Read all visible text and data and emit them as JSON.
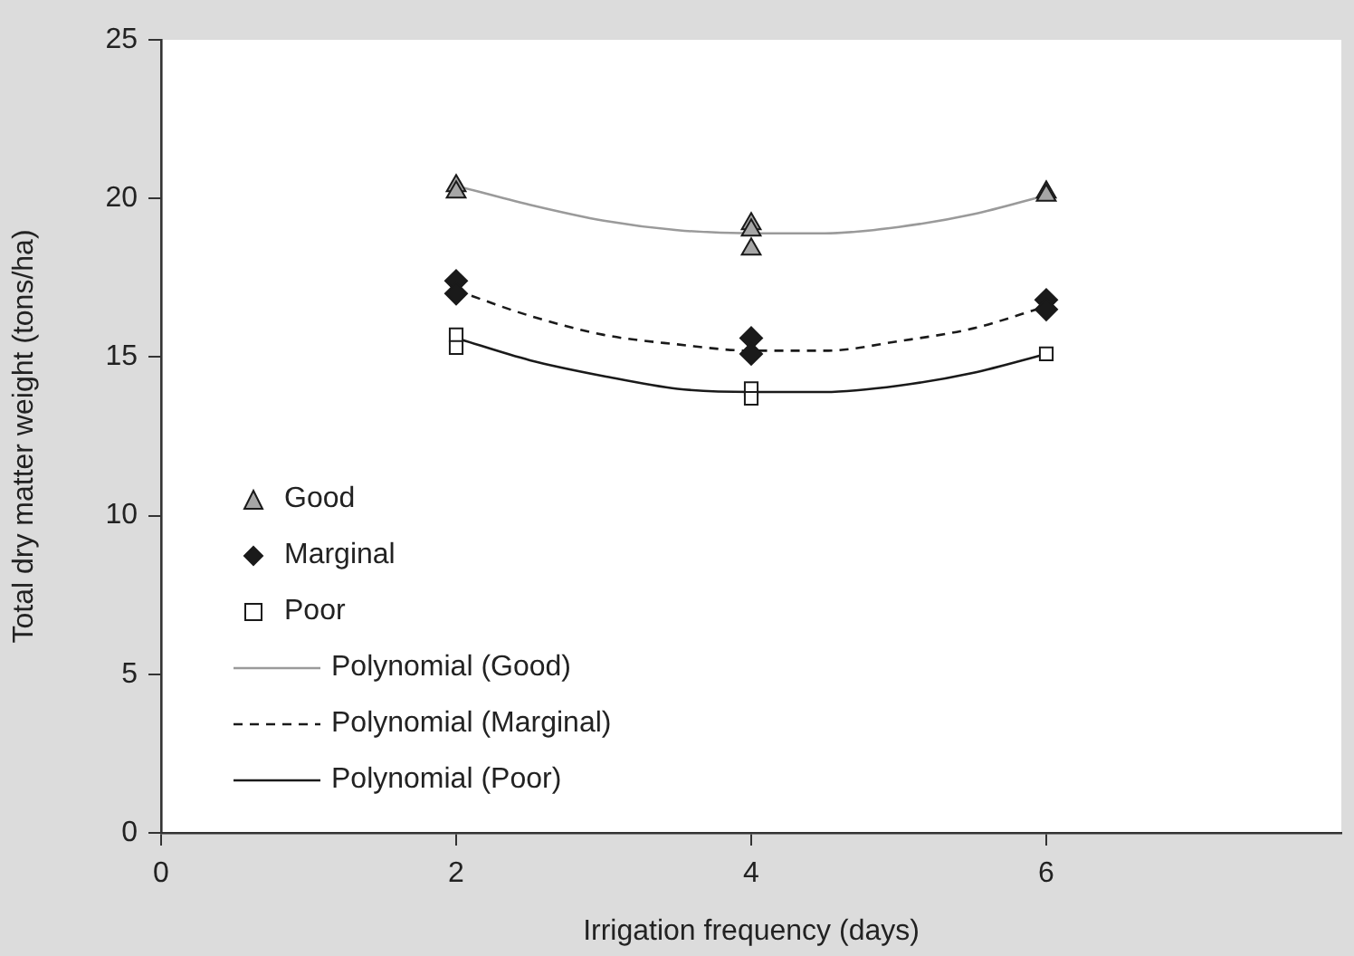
{
  "chart_data": {
    "type": "scatter",
    "xlabel": "Irrigation frequency (days)",
    "ylabel": "Total dry matter weight (tons/ha)",
    "xlim": [
      0,
      8
    ],
    "xticks": [
      0,
      2,
      4,
      6
    ],
    "ylim": [
      0,
      25
    ],
    "yticks": [
      0,
      5,
      10,
      15,
      20,
      25
    ],
    "grid": false,
    "legend": "bottom left",
    "series": [
      {
        "name": "Good",
        "marker": "triangle",
        "color": "#a6a6a6",
        "x": [
          2,
          2,
          4,
          4,
          4,
          6,
          6
        ],
        "values": [
          20.4,
          20.2,
          19.2,
          19.0,
          18.4,
          20.2,
          20.1
        ]
      },
      {
        "name": "Marginal",
        "marker": "diamond",
        "color": "#1a1a1a",
        "x": [
          2,
          2,
          4,
          4,
          6,
          6
        ],
        "values": [
          17.4,
          17.0,
          15.6,
          15.1,
          16.8,
          16.5
        ]
      },
      {
        "name": "Poor",
        "marker": "square",
        "color": "#ffffff",
        "x": [
          2,
          2,
          4,
          4,
          6
        ],
        "values": [
          15.7,
          15.3,
          14.0,
          13.7,
          15.1
        ]
      },
      {
        "name": "Polynomial (Good)",
        "type": "line",
        "marker": "none",
        "line_style": "solid",
        "color": "#9a9a9a",
        "x": [
          2,
          2.5,
          3,
          3.5,
          4,
          4.5,
          5,
          5.5,
          6
        ],
        "values": [
          20.4,
          19.8,
          19.3,
          19.0,
          18.9,
          18.9,
          19.1,
          19.5,
          20.1
        ]
      },
      {
        "name": "Polynomial (Marginal)",
        "type": "line",
        "marker": "none",
        "line_style": "dashed",
        "color": "#1a1a1a",
        "x": [
          2,
          2.5,
          3,
          3.5,
          4,
          4.5,
          5,
          5.5,
          6
        ],
        "values": [
          17.1,
          16.3,
          15.7,
          15.4,
          15.2,
          15.2,
          15.5,
          15.9,
          16.6
        ]
      },
      {
        "name": "Polynomial (Poor)",
        "type": "line",
        "marker": "none",
        "line_style": "solid",
        "color": "#1a1a1a",
        "x": [
          2,
          2.5,
          3,
          3.5,
          4,
          4.5,
          5,
          5.5,
          6
        ],
        "values": [
          15.6,
          14.9,
          14.4,
          14.0,
          13.9,
          13.9,
          14.1,
          14.5,
          15.1
        ]
      }
    ]
  }
}
